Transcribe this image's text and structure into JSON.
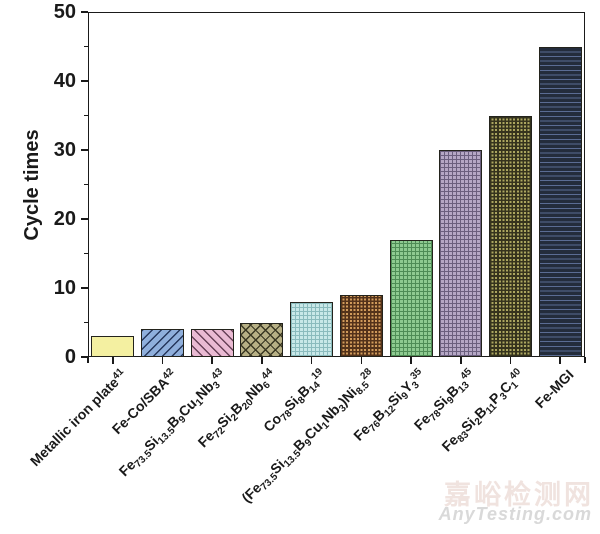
{
  "watermark": {
    "line1": "嘉峪检测网",
    "line2": "AnyTesting.com",
    "line1_color": "#f0e3df",
    "line2_color": "#d9d9d9"
  },
  "chart_data": {
    "type": "bar",
    "title": "",
    "xlabel": "",
    "ylabel": "Cycle times",
    "ylim": [
      0,
      50
    ],
    "y_major_ticks": [
      0,
      10,
      20,
      30,
      40,
      50
    ],
    "y_minor_ticks": [
      5,
      15,
      25,
      35,
      45
    ],
    "grid": false,
    "legend": false,
    "axis_color": "#1a1a1a",
    "categories": [
      "Metallic iron plate^{41}",
      "Fe-Co/SBA^{42}",
      "Fe_{73.5}Si_{13.5}B_{9}Cu_{1}Nb_{3}^{43}",
      "Fe_{72}Si_{2}B_{20}Nb_{6}^{44}",
      "Co_{78}Si_{8}B_{14}^{19}",
      "(Fe_{73.5}Si_{13.5}B_{9}Cu_{1}Nb_{3})Ni_{8.5}^{28}",
      "Fe_{76}B_{12}Si_{9}Y_{3}^{35}",
      "Fe_{78}Si_{9}B_{13}^{45}",
      "Fe_{83}Si_{2}B_{11}P_{3}C_{1}^{40}",
      "Fe-MGI"
    ],
    "values": [
      3,
      4,
      4,
      5,
      8,
      9,
      17,
      30,
      35,
      45
    ],
    "bars": [
      {
        "label": "Metallic iron plate^{41}",
        "value": 3,
        "fill": "#f4f0a1",
        "pattern": "solid",
        "pattern_color": "#f4f0a1"
      },
      {
        "label": "Fe-Co/SBA^{42}",
        "value": 4,
        "fill": "#8fafdc",
        "pattern": "diag-up",
        "pattern_color": "#26375c"
      },
      {
        "label": "Fe_{73.5}Si_{13.5}B_{9}Cu_{1}Nb_{3}^{43}",
        "value": 4,
        "fill": "#eabad3",
        "pattern": "diag-down",
        "pattern_color": "#684158"
      },
      {
        "label": "Fe_{72}Si_{2}B_{20}Nb_{6}^{44}",
        "value": 5,
        "fill": "#b7b085",
        "pattern": "crosshatch",
        "pattern_color": "#3a3823"
      },
      {
        "label": "Co_{78}Si_{8}B_{14}^{19}",
        "value": 8,
        "fill": "#c8e8e8",
        "pattern": "grid",
        "pattern_color": "#8abbbd"
      },
      {
        "label": "(Fe_{73.5}Si_{13.5}B_{9}Cu_{1}Nb_{3})Ni_{8.5}^{28}",
        "value": 9,
        "fill": "#d09b5b",
        "pattern": "check",
        "pattern_color": "#53321a"
      },
      {
        "label": "Fe_{76}B_{12}Si_{9}Y_{3}^{35}",
        "value": 17,
        "fill": "#8eca90",
        "pattern": "grid",
        "pattern_color": "#4e8c55"
      },
      {
        "label": "Fe_{78}Si_{9}B_{13}^{45}",
        "value": 30,
        "fill": "#b5a7c5",
        "pattern": "grid",
        "pattern_color": "#6b5f7e"
      },
      {
        "label": "Fe_{83}Si_{2}B_{11}P_{3}C_{1}^{40}",
        "value": 35,
        "fill": "#aba65f",
        "pattern": "check",
        "pattern_color": "#35331d"
      },
      {
        "label": "Fe-MGI",
        "value": 45,
        "fill": "#232c3c",
        "pattern": "hlines",
        "pattern_color": "#5a6c94"
      }
    ]
  }
}
